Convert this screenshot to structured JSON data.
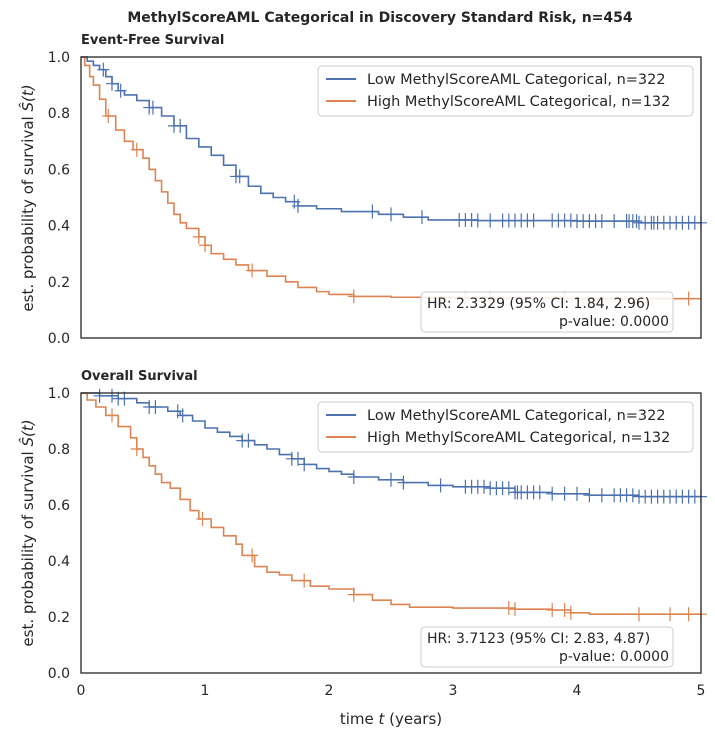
{
  "figure_title": "MethylScoreAML Categorical in Discovery Standard Risk, n=454",
  "xlabel_prefix": "time ",
  "xlabel_var": "t",
  "xlabel_suffix": " (years)",
  "colors": {
    "low": "#4c72b0",
    "high": "#dd8452"
  },
  "chart_data": [
    {
      "type": "line",
      "subtitle": "Event-Free Survival",
      "ylabel_prefix": "est. probability of survival ",
      "ylabel_var": "Ŝ(t)",
      "xlim": [
        0,
        5
      ],
      "ylim": [
        0,
        1
      ],
      "x_ticks": [
        "0",
        "1",
        "2",
        "3",
        "4",
        "5"
      ],
      "y_ticks": [
        "0.0",
        "0.2",
        "0.4",
        "0.6",
        "0.8",
        "1.0"
      ],
      "legend_position": "top-right",
      "annotation": [
        "HR: 2.3329 (95% CI: 1.84, 2.96)",
        "p-value: 0.0000"
      ],
      "series": [
        {
          "name": "Low MethylScoreAML Categorical, n=322",
          "color_key": "low",
          "steps": [
            [
              0,
              1.0
            ],
            [
              0.05,
              0.985
            ],
            [
              0.1,
              0.97
            ],
            [
              0.15,
              0.955
            ],
            [
              0.2,
              0.93
            ],
            [
              0.25,
              0.905
            ],
            [
              0.3,
              0.88
            ],
            [
              0.35,
              0.865
            ],
            [
              0.45,
              0.845
            ],
            [
              0.55,
              0.82
            ],
            [
              0.65,
              0.79
            ],
            [
              0.75,
              0.755
            ],
            [
              0.85,
              0.71
            ],
            [
              0.95,
              0.68
            ],
            [
              1.05,
              0.65
            ],
            [
              1.15,
              0.615
            ],
            [
              1.25,
              0.575
            ],
            [
              1.35,
              0.54
            ],
            [
              1.45,
              0.515
            ],
            [
              1.55,
              0.5
            ],
            [
              1.65,
              0.485
            ],
            [
              1.75,
              0.47
            ],
            [
              1.9,
              0.46
            ],
            [
              2.1,
              0.45
            ],
            [
              2.4,
              0.44
            ],
            [
              2.6,
              0.43
            ],
            [
              2.8,
              0.42
            ],
            [
              3.2,
              0.418
            ],
            [
              4.0,
              0.416
            ],
            [
              4.5,
              0.41
            ],
            [
              5.0,
              0.41
            ]
          ],
          "censors": [
            0.18,
            0.25,
            0.32,
            0.55,
            0.58,
            0.75,
            0.8,
            1.25,
            1.28,
            1.72,
            1.75,
            2.35,
            2.5,
            2.75,
            3.05,
            3.1,
            3.15,
            3.2,
            3.3,
            3.4,
            3.45,
            3.5,
            3.55,
            3.6,
            3.65,
            3.8,
            3.85,
            3.9,
            3.95,
            4.0,
            4.05,
            4.1,
            4.15,
            4.2,
            4.3,
            4.4,
            4.42,
            4.45,
            4.48,
            4.5,
            4.55,
            4.6,
            4.62,
            4.65,
            4.7,
            4.75,
            4.8,
            4.85,
            4.9,
            4.95,
            5.0
          ]
        },
        {
          "name": "High MethylScoreAML Categorical, n=132",
          "color_key": "high",
          "steps": [
            [
              0,
              1.0
            ],
            [
              0.03,
              0.97
            ],
            [
              0.07,
              0.93
            ],
            [
              0.1,
              0.9
            ],
            [
              0.15,
              0.85
            ],
            [
              0.2,
              0.79
            ],
            [
              0.28,
              0.74
            ],
            [
              0.35,
              0.7
            ],
            [
              0.42,
              0.67
            ],
            [
              0.5,
              0.64
            ],
            [
              0.55,
              0.6
            ],
            [
              0.6,
              0.56
            ],
            [
              0.65,
              0.52
            ],
            [
              0.7,
              0.48
            ],
            [
              0.75,
              0.44
            ],
            [
              0.8,
              0.41
            ],
            [
              0.85,
              0.39
            ],
            [
              0.95,
              0.36
            ],
            [
              1.0,
              0.33
            ],
            [
              1.05,
              0.3
            ],
            [
              1.15,
              0.28
            ],
            [
              1.25,
              0.26
            ],
            [
              1.35,
              0.24
            ],
            [
              1.5,
              0.22
            ],
            [
              1.65,
              0.2
            ],
            [
              1.75,
              0.18
            ],
            [
              1.9,
              0.165
            ],
            [
              2.0,
              0.155
            ],
            [
              2.2,
              0.148
            ],
            [
              2.5,
              0.145
            ],
            [
              3.0,
              0.142
            ],
            [
              4.0,
              0.14
            ],
            [
              5.0,
              0.14
            ]
          ],
          "censors": [
            0.22,
            0.45,
            0.95,
            1.0,
            1.38,
            2.2,
            3.1,
            3.3,
            3.9,
            4.9
          ]
        }
      ]
    },
    {
      "type": "line",
      "subtitle": "Overall Survival",
      "ylabel_prefix": "est. probability of survival ",
      "ylabel_var": "Ŝ(t)",
      "xlim": [
        0,
        5
      ],
      "ylim": [
        0,
        1
      ],
      "x_ticks": [
        "0",
        "1",
        "2",
        "3",
        "4",
        "5"
      ],
      "y_ticks": [
        "0.0",
        "0.2",
        "0.4",
        "0.6",
        "0.8",
        "1.0"
      ],
      "legend_position": "top-right",
      "annotation": [
        "HR: 3.7123 (95% CI: 2.83, 4.87)",
        "p-value: 0.0000"
      ],
      "series": [
        {
          "name": "Low MethylScoreAML Categorical, n=322",
          "color_key": "low",
          "steps": [
            [
              0,
              1.0
            ],
            [
              0.15,
              0.99
            ],
            [
              0.3,
              0.98
            ],
            [
              0.45,
              0.965
            ],
            [
              0.55,
              0.95
            ],
            [
              0.7,
              0.935
            ],
            [
              0.8,
              0.92
            ],
            [
              0.9,
              0.9
            ],
            [
              1.0,
              0.875
            ],
            [
              1.1,
              0.86
            ],
            [
              1.2,
              0.845
            ],
            [
              1.3,
              0.83
            ],
            [
              1.4,
              0.815
            ],
            [
              1.5,
              0.8
            ],
            [
              1.6,
              0.78
            ],
            [
              1.7,
              0.765
            ],
            [
              1.8,
              0.745
            ],
            [
              1.9,
              0.73
            ],
            [
              2.0,
              0.72
            ],
            [
              2.1,
              0.71
            ],
            [
              2.2,
              0.7
            ],
            [
              2.4,
              0.69
            ],
            [
              2.6,
              0.68
            ],
            [
              2.8,
              0.67
            ],
            [
              3.0,
              0.665
            ],
            [
              3.3,
              0.66
            ],
            [
              3.5,
              0.645
            ],
            [
              3.8,
              0.64
            ],
            [
              4.1,
              0.635
            ],
            [
              4.5,
              0.63
            ],
            [
              5.0,
              0.63
            ]
          ],
          "censors": [
            0.15,
            0.25,
            0.3,
            0.35,
            0.55,
            0.6,
            0.78,
            0.82,
            1.3,
            1.35,
            1.7,
            1.75,
            1.8,
            2.2,
            2.5,
            2.6,
            2.9,
            3.1,
            3.15,
            3.2,
            3.25,
            3.3,
            3.35,
            3.4,
            3.45,
            3.5,
            3.52,
            3.55,
            3.6,
            3.65,
            3.7,
            3.8,
            3.9,
            4.0,
            4.1,
            4.2,
            4.3,
            4.35,
            4.4,
            4.45,
            4.5,
            4.55,
            4.6,
            4.65,
            4.7,
            4.75,
            4.8,
            4.85,
            4.9,
            4.95,
            5.0
          ]
        },
        {
          "name": "High MethylScoreAML Categorical, n=132",
          "color_key": "high",
          "steps": [
            [
              0,
              1.0
            ],
            [
              0.05,
              0.975
            ],
            [
              0.12,
              0.95
            ],
            [
              0.2,
              0.92
            ],
            [
              0.3,
              0.88
            ],
            [
              0.4,
              0.84
            ],
            [
              0.45,
              0.8
            ],
            [
              0.5,
              0.77
            ],
            [
              0.55,
              0.74
            ],
            [
              0.6,
              0.71
            ],
            [
              0.65,
              0.68
            ],
            [
              0.72,
              0.66
            ],
            [
              0.8,
              0.62
            ],
            [
              0.88,
              0.58
            ],
            [
              0.95,
              0.55
            ],
            [
              1.05,
              0.52
            ],
            [
              1.15,
              0.49
            ],
            [
              1.25,
              0.46
            ],
            [
              1.3,
              0.42
            ],
            [
              1.4,
              0.38
            ],
            [
              1.5,
              0.36
            ],
            [
              1.6,
              0.35
            ],
            [
              1.7,
              0.33
            ],
            [
              1.85,
              0.31
            ],
            [
              2.0,
              0.3
            ],
            [
              2.2,
              0.28
            ],
            [
              2.35,
              0.26
            ],
            [
              2.5,
              0.245
            ],
            [
              2.65,
              0.235
            ],
            [
              3.0,
              0.232
            ],
            [
              3.5,
              0.228
            ],
            [
              3.8,
              0.225
            ],
            [
              3.95,
              0.215
            ],
            [
              4.1,
              0.21
            ],
            [
              5.0,
              0.21
            ]
          ],
          "censors": [
            0.25,
            0.45,
            0.98,
            1.38,
            1.8,
            2.2,
            3.45,
            3.5,
            3.8,
            3.9,
            3.95,
            4.5,
            4.75,
            4.9,
            5.0
          ]
        }
      ]
    }
  ]
}
